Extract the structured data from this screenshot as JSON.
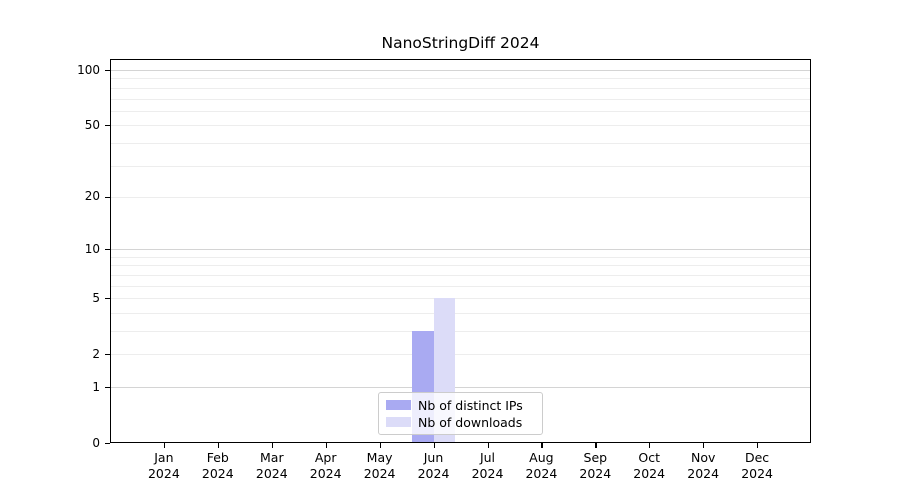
{
  "title": "NanoStringDiff 2024",
  "legend": {
    "items": [
      {
        "label": "Nb of distinct IPs",
        "color": "#a9aaf2"
      },
      {
        "label": "Nb of downloads",
        "color": "#dcdcf8"
      }
    ]
  },
  "chart_data": {
    "type": "bar",
    "title": "NanoStringDiff 2024",
    "categories": [
      "Jan 2024",
      "Feb 2024",
      "Mar 2024",
      "Apr 2024",
      "May 2024",
      "Jun 2024",
      "Jul 2024",
      "Aug 2024",
      "Sep 2024",
      "Oct 2024",
      "Nov 2024",
      "Dec 2024"
    ],
    "series": [
      {
        "name": "Nb of distinct IPs",
        "color": "#a9aaf2",
        "values": [
          0,
          0,
          0,
          0,
          0,
          3,
          0,
          0,
          0,
          0,
          0,
          0
        ]
      },
      {
        "name": "Nb of downloads",
        "color": "#dcdcf8",
        "values": [
          0,
          0,
          0,
          0,
          0,
          5,
          0,
          0,
          0,
          0,
          0,
          0
        ]
      }
    ],
    "xlabel": "",
    "ylabel": "",
    "yscale": "log1p",
    "yticks": [
      0,
      1,
      2,
      5,
      10,
      20,
      50,
      100
    ],
    "ylim": [
      0,
      115
    ],
    "grid": {
      "major": [
        1,
        10,
        100
      ],
      "minor": [
        2,
        3,
        4,
        5,
        6,
        7,
        8,
        9,
        20,
        30,
        40,
        50,
        60,
        70,
        80,
        90
      ]
    },
    "legend_position": "lower-center-inside"
  }
}
